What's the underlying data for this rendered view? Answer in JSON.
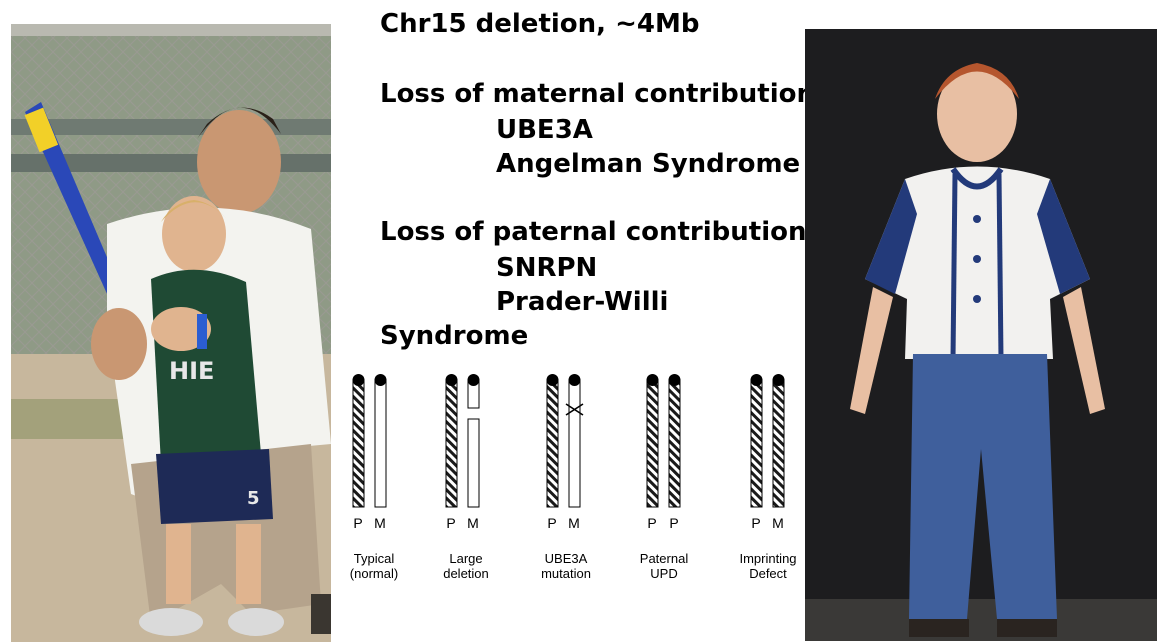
{
  "text": {
    "line1": "Chr15 deletion, ~4Mb",
    "line2": "Loss of maternal contribution",
    "line3": "UBE3A",
    "line4": "Angelman Syndrome",
    "line5": "Loss of paternal contribution",
    "line6": "SNRPN",
    "line7": "Prader-Willi",
    "line8": "Syndrome"
  },
  "diagram": {
    "panels": [
      {
        "left_label": "P",
        "right_label": "M",
        "caption_line1": "Typical",
        "caption_line2": "(normal)"
      },
      {
        "left_label": "P",
        "right_label": "M",
        "caption_line1": "Large",
        "caption_line2": "deletion"
      },
      {
        "left_label": "P",
        "right_label": "M",
        "caption_line1": "UBE3A",
        "caption_line2": "mutation"
      },
      {
        "left_label": "P",
        "right_label": "P",
        "caption_line1": "Paternal",
        "caption_line2": "UPD"
      },
      {
        "left_label": "P",
        "right_label": "M",
        "caption_line1": "Imprinting",
        "caption_line2": "Defect"
      }
    ]
  },
  "colors": {
    "outline": "#000000",
    "hatch": "#1a1a1a",
    "photo_dark": "#1d1d1f"
  }
}
